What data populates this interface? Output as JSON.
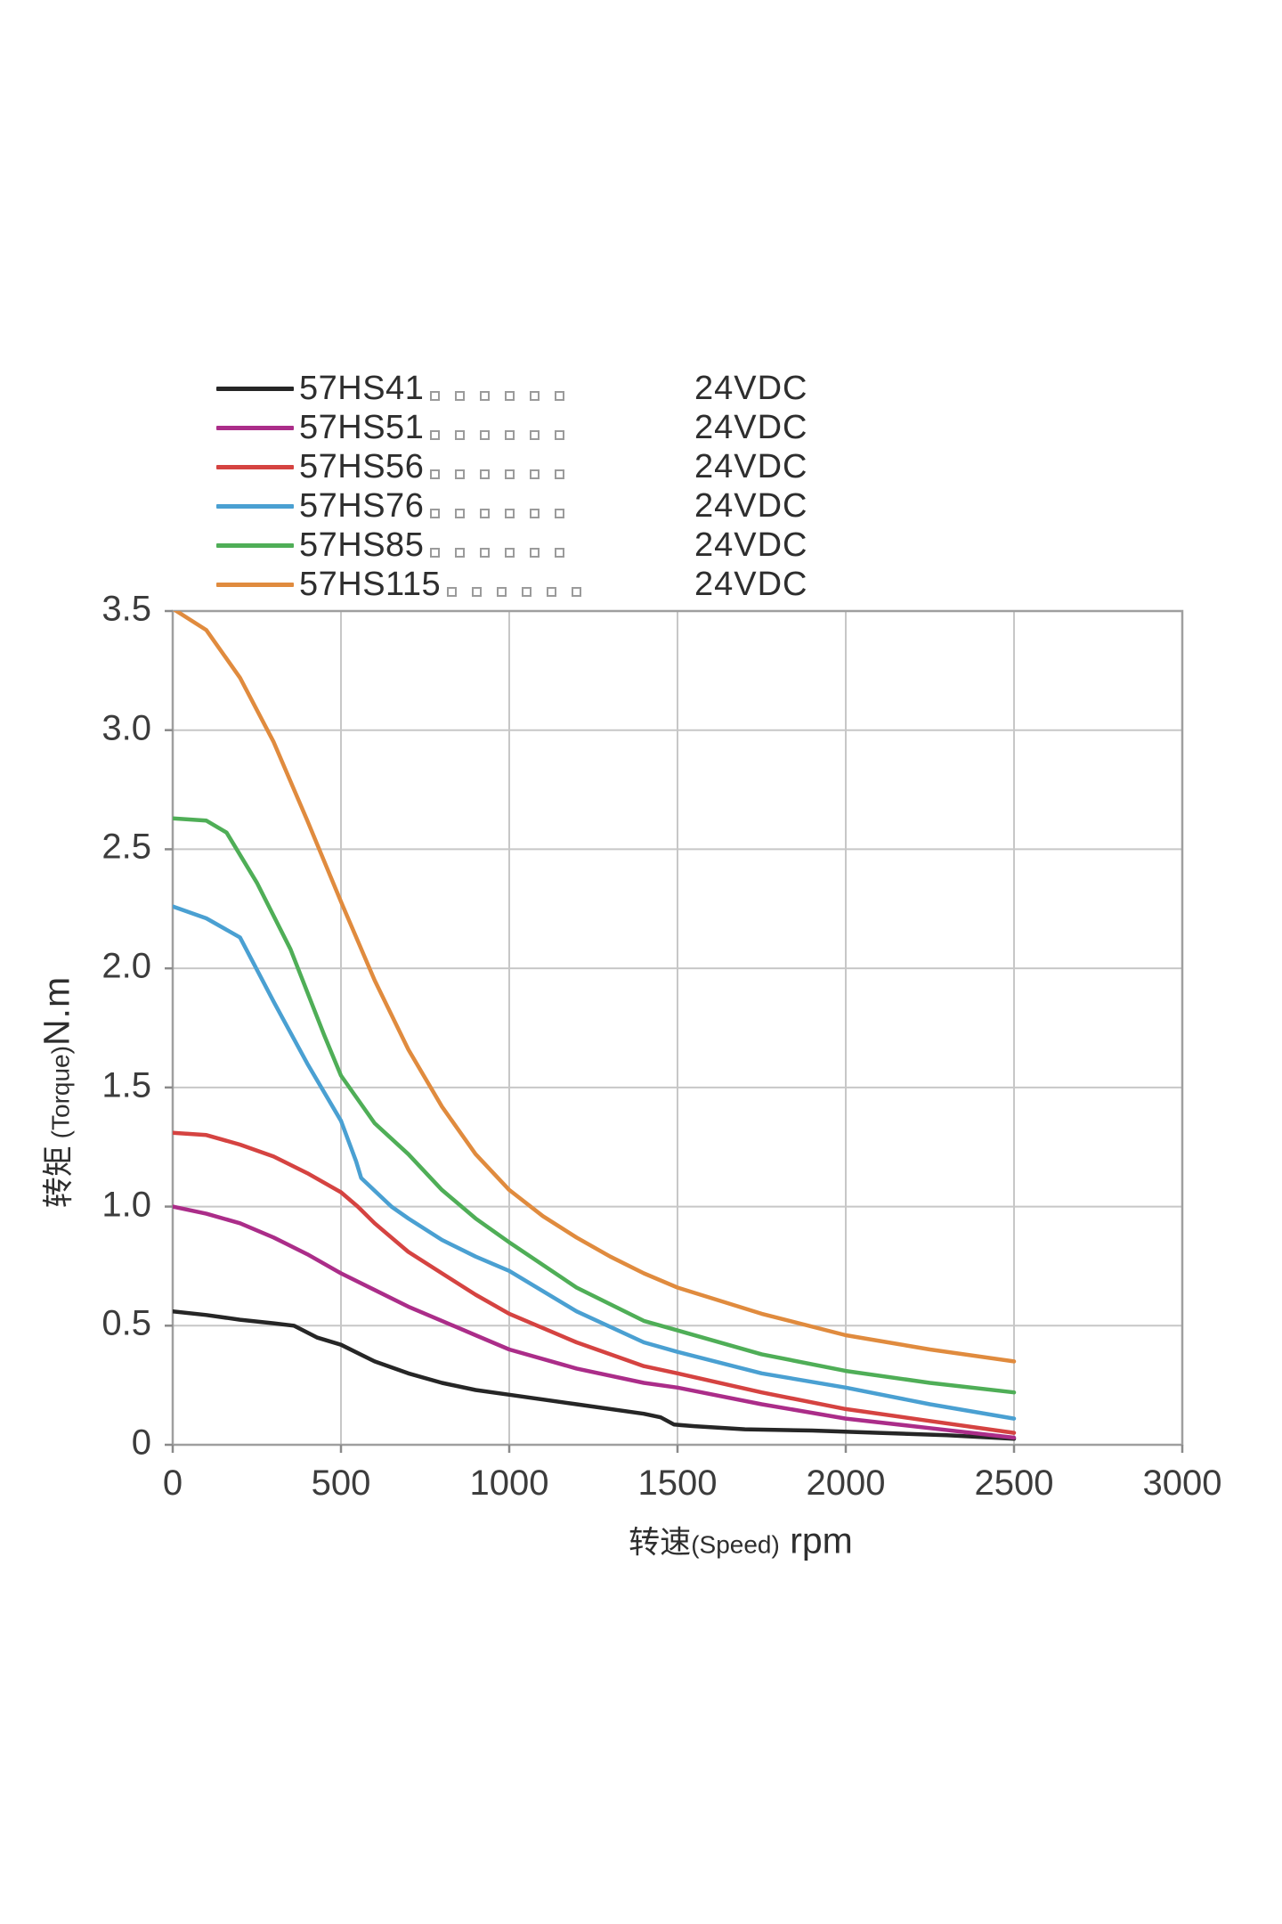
{
  "legend": {
    "voltage_label": "24VDC",
    "placeholder_boxes_per_row": 6,
    "items": [
      {
        "model": "57HS41",
        "voltage": "24VDC",
        "color": "#262626"
      },
      {
        "model": "57HS51",
        "voltage": "24VDC",
        "color": "#ab2d89"
      },
      {
        "model": "57HS56",
        "voltage": "24VDC",
        "color": "#d54341"
      },
      {
        "model": "57HS76",
        "voltage": "24VDC",
        "color": "#4aa0d2"
      },
      {
        "model": "57HS85",
        "voltage": "24VDC",
        "color": "#4fae57"
      },
      {
        "model": "57HS115",
        "voltage": "24VDC",
        "color": "#e08b3e"
      }
    ]
  },
  "axes": {
    "x_title_cn": "转速",
    "x_title_en": "(Speed)",
    "x_title_unit": " rpm",
    "y_title_cn": "转矩",
    "y_title_en": " (Torque)",
    "y_title_unit": "N.m",
    "grid_color": "#c7c7c7",
    "border_color": "#9f9f9f",
    "tick_color": "#8a8a8a",
    "text_color": "#3c3c3c"
  },
  "chart_data": {
    "type": "line",
    "title": "",
    "xlabel": "转速(Speed) rpm",
    "ylabel": "转矩(Torque)N.m",
    "xlim": [
      0,
      3000
    ],
    "ylim": [
      0,
      3.5
    ],
    "grid": true,
    "legend_position": "top-left",
    "x_ticks": [
      {
        "label": "0",
        "value": 0
      },
      {
        "label": "500",
        "value": 500
      },
      {
        "label": "1000",
        "value": 1000
      },
      {
        "label": "1500",
        "value": 1500
      },
      {
        "label": "2000",
        "value": 2000
      },
      {
        "label": "2500",
        "value": 2500
      },
      {
        "label": "3000",
        "value": 3000
      }
    ],
    "y_ticks": [
      {
        "label": "0",
        "value": 0
      },
      {
        "label": "0.5",
        "value": 0.5
      },
      {
        "label": "1.0",
        "value": 1.0
      },
      {
        "label": "1.5",
        "value": 1.5
      },
      {
        "label": "2.0",
        "value": 2.0
      },
      {
        "label": "2.5",
        "value": 2.5
      },
      {
        "label": "3.0",
        "value": 3.0
      },
      {
        "label": "3.5",
        "value": 3.5
      }
    ],
    "series": [
      {
        "name": "57HS41",
        "color": "#262626",
        "points": [
          [
            0,
            0.56
          ],
          [
            100,
            0.545
          ],
          [
            200,
            0.525
          ],
          [
            300,
            0.51
          ],
          [
            360,
            0.5
          ],
          [
            430,
            0.45
          ],
          [
            500,
            0.42
          ],
          [
            600,
            0.35
          ],
          [
            700,
            0.3
          ],
          [
            800,
            0.26
          ],
          [
            900,
            0.23
          ],
          [
            1000,
            0.21
          ],
          [
            1200,
            0.17
          ],
          [
            1400,
            0.13
          ],
          [
            1450,
            0.115
          ],
          [
            1490,
            0.085
          ],
          [
            1550,
            0.078
          ],
          [
            1700,
            0.065
          ],
          [
            1900,
            0.06
          ],
          [
            2100,
            0.05
          ],
          [
            2300,
            0.04
          ],
          [
            2500,
            0.025
          ]
        ]
      },
      {
        "name": "57HS51",
        "color": "#ab2d89",
        "points": [
          [
            0,
            1.0
          ],
          [
            100,
            0.97
          ],
          [
            200,
            0.93
          ],
          [
            300,
            0.87
          ],
          [
            400,
            0.8
          ],
          [
            500,
            0.72
          ],
          [
            600,
            0.65
          ],
          [
            700,
            0.58
          ],
          [
            800,
            0.52
          ],
          [
            900,
            0.46
          ],
          [
            1000,
            0.4
          ],
          [
            1200,
            0.32
          ],
          [
            1400,
            0.26
          ],
          [
            1500,
            0.24
          ],
          [
            1750,
            0.17
          ],
          [
            2000,
            0.11
          ],
          [
            2250,
            0.07
          ],
          [
            2500,
            0.03
          ]
        ]
      },
      {
        "name": "57HS56",
        "color": "#d54341",
        "points": [
          [
            0,
            1.31
          ],
          [
            100,
            1.3
          ],
          [
            200,
            1.26
          ],
          [
            300,
            1.21
          ],
          [
            400,
            1.14
          ],
          [
            500,
            1.06
          ],
          [
            550,
            1.0
          ],
          [
            600,
            0.93
          ],
          [
            700,
            0.81
          ],
          [
            800,
            0.72
          ],
          [
            900,
            0.63
          ],
          [
            1000,
            0.55
          ],
          [
            1200,
            0.43
          ],
          [
            1400,
            0.33
          ],
          [
            1500,
            0.3
          ],
          [
            1750,
            0.22
          ],
          [
            2000,
            0.15
          ],
          [
            2250,
            0.1
          ],
          [
            2500,
            0.05
          ]
        ]
      },
      {
        "name": "57HS76",
        "color": "#4aa0d2",
        "points": [
          [
            0,
            2.26
          ],
          [
            100,
            2.21
          ],
          [
            200,
            2.13
          ],
          [
            300,
            1.86
          ],
          [
            400,
            1.6
          ],
          [
            500,
            1.36
          ],
          [
            545,
            1.19
          ],
          [
            560,
            1.12
          ],
          [
            650,
            1.0
          ],
          [
            700,
            0.95
          ],
          [
            800,
            0.86
          ],
          [
            900,
            0.79
          ],
          [
            1000,
            0.73
          ],
          [
            1200,
            0.56
          ],
          [
            1400,
            0.43
          ],
          [
            1500,
            0.39
          ],
          [
            1750,
            0.3
          ],
          [
            2000,
            0.24
          ],
          [
            2250,
            0.17
          ],
          [
            2500,
            0.11
          ]
        ]
      },
      {
        "name": "57HS85",
        "color": "#4fae57",
        "points": [
          [
            0,
            2.63
          ],
          [
            100,
            2.62
          ],
          [
            160,
            2.57
          ],
          [
            250,
            2.36
          ],
          [
            350,
            2.08
          ],
          [
            450,
            1.72
          ],
          [
            500,
            1.55
          ],
          [
            600,
            1.35
          ],
          [
            700,
            1.22
          ],
          [
            800,
            1.07
          ],
          [
            900,
            0.95
          ],
          [
            1000,
            0.85
          ],
          [
            1200,
            0.66
          ],
          [
            1400,
            0.52
          ],
          [
            1500,
            0.48
          ],
          [
            1750,
            0.38
          ],
          [
            2000,
            0.31
          ],
          [
            2250,
            0.26
          ],
          [
            2500,
            0.22
          ]
        ]
      },
      {
        "name": "57HS115",
        "color": "#e08b3e",
        "points": [
          [
            0,
            3.51
          ],
          [
            100,
            3.42
          ],
          [
            200,
            3.22
          ],
          [
            300,
            2.95
          ],
          [
            400,
            2.62
          ],
          [
            500,
            2.28
          ],
          [
            600,
            1.95
          ],
          [
            700,
            1.66
          ],
          [
            800,
            1.42
          ],
          [
            900,
            1.22
          ],
          [
            1000,
            1.07
          ],
          [
            1100,
            0.96
          ],
          [
            1200,
            0.87
          ],
          [
            1300,
            0.79
          ],
          [
            1400,
            0.72
          ],
          [
            1500,
            0.66
          ],
          [
            1750,
            0.55
          ],
          [
            2000,
            0.46
          ],
          [
            2250,
            0.4
          ],
          [
            2500,
            0.35
          ]
        ]
      }
    ]
  }
}
